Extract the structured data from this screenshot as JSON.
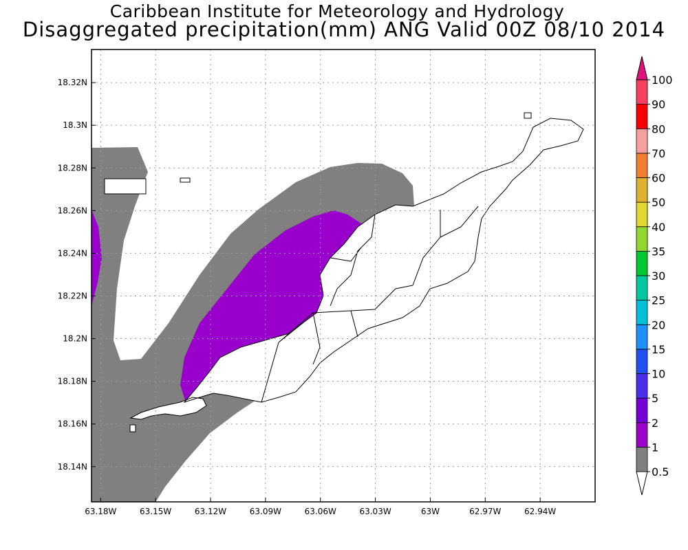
{
  "title": {
    "line1": "Caribbean Institute for Meteorology and Hydrology",
    "line2": "Disaggregated precipitation(mm) ANG Valid 00Z 08/10 2014"
  },
  "map": {
    "lon_min": -63.185,
    "lon_max": -62.91,
    "lat_min": 18.1235,
    "lat_max": 18.3355,
    "x_ticks": [
      {
        "value": -63.18,
        "label": "63.18W"
      },
      {
        "value": -63.15,
        "label": "63.15W"
      },
      {
        "value": -63.12,
        "label": "63.12W"
      },
      {
        "value": -63.09,
        "label": "63.09W"
      },
      {
        "value": -63.06,
        "label": "63.06W"
      },
      {
        "value": -63.03,
        "label": "63.03W"
      },
      {
        "value": -63.0,
        "label": "63W"
      },
      {
        "value": -62.97,
        "label": "62.97W"
      },
      {
        "value": -62.94,
        "label": "62.94W"
      }
    ],
    "y_ticks": [
      {
        "value": 18.32,
        "label": "18.32N"
      },
      {
        "value": 18.3,
        "label": "18.3N"
      },
      {
        "value": 18.28,
        "label": "18.28N"
      },
      {
        "value": 18.26,
        "label": "18.26N"
      },
      {
        "value": 18.24,
        "label": "18.24N"
      },
      {
        "value": 18.22,
        "label": "18.22N"
      },
      {
        "value": 18.2,
        "label": "18.2N"
      },
      {
        "value": 18.18,
        "label": "18.18N"
      },
      {
        "value": 18.16,
        "label": "18.16N"
      },
      {
        "value": 18.14,
        "label": "18.14N"
      }
    ],
    "grid": true,
    "shading_colors": {
      "0.5-1": "#808080",
      "1-2": "#9900cc"
    }
  },
  "legend": {
    "levels": [
      "0.5",
      "1",
      "2",
      "5",
      "10",
      "15",
      "20",
      "25",
      "30",
      "35",
      "40",
      "50",
      "60",
      "70",
      "80",
      "90",
      "100"
    ],
    "colors": [
      "#808080",
      "#9900cc",
      "#7400d6",
      "#4a30e8",
      "#2050f0",
      "#1e90ff",
      "#00c0d8",
      "#00c8a0",
      "#00c830",
      "#90d830",
      "#e0d830",
      "#e0b030",
      "#f08030",
      "#f8a0a0",
      "#f80000",
      "#f84060",
      "#e0107f"
    ]
  }
}
